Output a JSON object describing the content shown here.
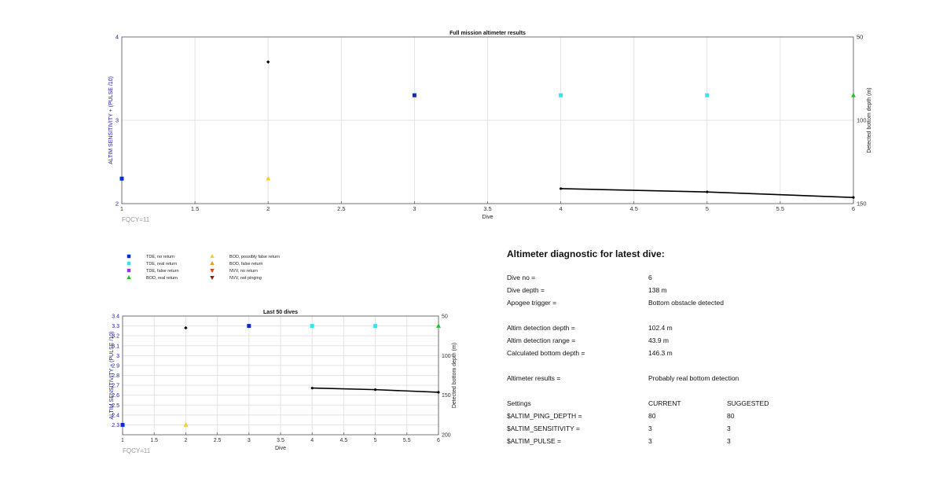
{
  "chart_data": [
    {
      "type": "scatter",
      "title": "Full mission altimeter results",
      "xlabel": "Dive",
      "ylabel": "ALTIM SENSITIVITY + (PULSE /10)",
      "y2label": "Detected bottom depth (m)",
      "xlim": [
        1,
        6
      ],
      "ylim": [
        2,
        4
      ],
      "y2lim": [
        50,
        150
      ],
      "y2_reversed": true,
      "xticks": [
        "1",
        "1.5",
        "2",
        "2.5",
        "3",
        "3.5",
        "4",
        "4.5",
        "5",
        "5.5",
        "6"
      ],
      "yticks": [
        "2",
        "3",
        "4"
      ],
      "y2ticks": [
        "50",
        "100",
        "150"
      ],
      "grid": true,
      "footnote": "FQCY=11",
      "markers": [
        {
          "kind": "tde_no_return",
          "x": 1,
          "y": 2.3
        },
        {
          "kind": "bod_possibly_false",
          "x": 2,
          "y": 2.3
        },
        {
          "kind": "tde_no_return",
          "x": 3,
          "y": 3.3
        },
        {
          "kind": "tde_real_return",
          "x": 4,
          "y": 3.3
        },
        {
          "kind": "tde_real_return",
          "x": 5,
          "y": 3.3
        },
        {
          "kind": "bod_real_return",
          "x": 6,
          "y": 3.3
        }
      ],
      "apogee_points": [
        {
          "x": 2,
          "y": 3.7
        }
      ],
      "bottom_depth_line": {
        "x": [
          4,
          5,
          6
        ],
        "depth": [
          141,
          143,
          146.3
        ]
      }
    },
    {
      "type": "scatter",
      "title": "Last 50 dives",
      "xlabel": "Dive",
      "ylabel": "ALTIM SENSITIVITY + (PULSE /10)",
      "y2label": "Detected bottom depth (m)",
      "xlim": [
        1,
        6
      ],
      "ylim": [
        2.2,
        3.4
      ],
      "y2lim": [
        50,
        200
      ],
      "y2_reversed": true,
      "xticks": [
        "1",
        "1.5",
        "2",
        "2.5",
        "3",
        "3.5",
        "4",
        "4.5",
        "5",
        "5.5",
        "6"
      ],
      "yticks": [
        "2.3",
        "2.4",
        "2.5",
        "2.6",
        "2.7",
        "2.8",
        "2.9",
        "3",
        "3.1",
        "3.2",
        "3.3",
        "3.4"
      ],
      "y2ticks": [
        "50",
        "100",
        "150",
        "200"
      ],
      "grid": true,
      "footnote": "FQCY=11",
      "markers": [
        {
          "kind": "tde_no_return",
          "x": 1,
          "y": 2.3
        },
        {
          "kind": "bod_possibly_false",
          "x": 2,
          "y": 2.3
        },
        {
          "kind": "tde_no_return",
          "x": 3,
          "y": 3.3
        },
        {
          "kind": "tde_real_return",
          "x": 4,
          "y": 3.3
        },
        {
          "kind": "tde_real_return",
          "x": 5,
          "y": 3.3
        },
        {
          "kind": "bod_real_return",
          "x": 6,
          "y": 3.3
        }
      ],
      "apogee_points": [
        {
          "x": 2,
          "y": 3.28
        }
      ],
      "bottom_depth_line": {
        "x": [
          4,
          5,
          6
        ],
        "depth": [
          141,
          143,
          146.3
        ]
      }
    }
  ],
  "legend": [
    {
      "kind": "tde_no_return",
      "label": "TDE, no return",
      "shape": "square",
      "color": "#0a2bcf"
    },
    {
      "kind": "tde_real_return",
      "label": "TDE, real return",
      "shape": "square",
      "color": "#2ee8f0"
    },
    {
      "kind": "tde_false_return",
      "label": "TDE, false return",
      "shape": "square",
      "color": "#8a3fd1"
    },
    {
      "kind": "bod_real_return",
      "label": "BOD, real return",
      "shape": "triangle-up",
      "color": "#22c02a"
    },
    {
      "kind": "bod_possibly_false",
      "label": "BOD, possibly false return",
      "shape": "triangle-up",
      "color": "#f2cf2a"
    },
    {
      "kind": "bod_false_return",
      "label": "BOD, false return",
      "shape": "triangle-up",
      "color": "#f29a1a"
    },
    {
      "kind": "nvv_no_return",
      "label": "NVV, no return",
      "shape": "triangle-down",
      "color": "#e0401a"
    },
    {
      "kind": "nvv_not_pinging",
      "label": "NVV, not pinging",
      "shape": "triangle-down",
      "color": "#8a1a12"
    }
  ],
  "diagnostic": {
    "title": "Altimeter diagnostic for latest dive:",
    "dive_no_label": "Dive no =",
    "dive_no_value": "6",
    "dive_depth_label": "Dive depth =",
    "dive_depth_value": "138 m",
    "apogee_label": "Apogee trigger =",
    "apogee_value": "Bottom obstacle detected",
    "det_depth_label": "Altim detection depth =",
    "det_depth_value": "102.4 m",
    "det_range_label": "Altim detection range =",
    "det_range_value": "43.9 m",
    "calc_depth_label": "Calculated bottom depth =",
    "calc_depth_value": "146.3 m",
    "results_label": "Altimeter results =",
    "results_value": "Probably real bottom detection",
    "settings_label": "Settings",
    "current_label": "CURRENT",
    "suggested_label": "SUGGESTED",
    "ping_label": "$ALTIM_PING_DEPTH =",
    "ping_current": "80",
    "ping_suggested": "80",
    "sens_label": "$ALTIM_SENSITIVITY =",
    "sens_current": "3",
    "sens_suggested": "3",
    "pulse_label": "$ALTIM_PULSE =",
    "pulse_current": "3",
    "pulse_suggested": "3"
  },
  "colors": {
    "axis_label_blue": "#1a1aa0",
    "grid": "#e3e3e3",
    "footnote_gray": "#9a9a9a",
    "apogee": "#000000"
  }
}
